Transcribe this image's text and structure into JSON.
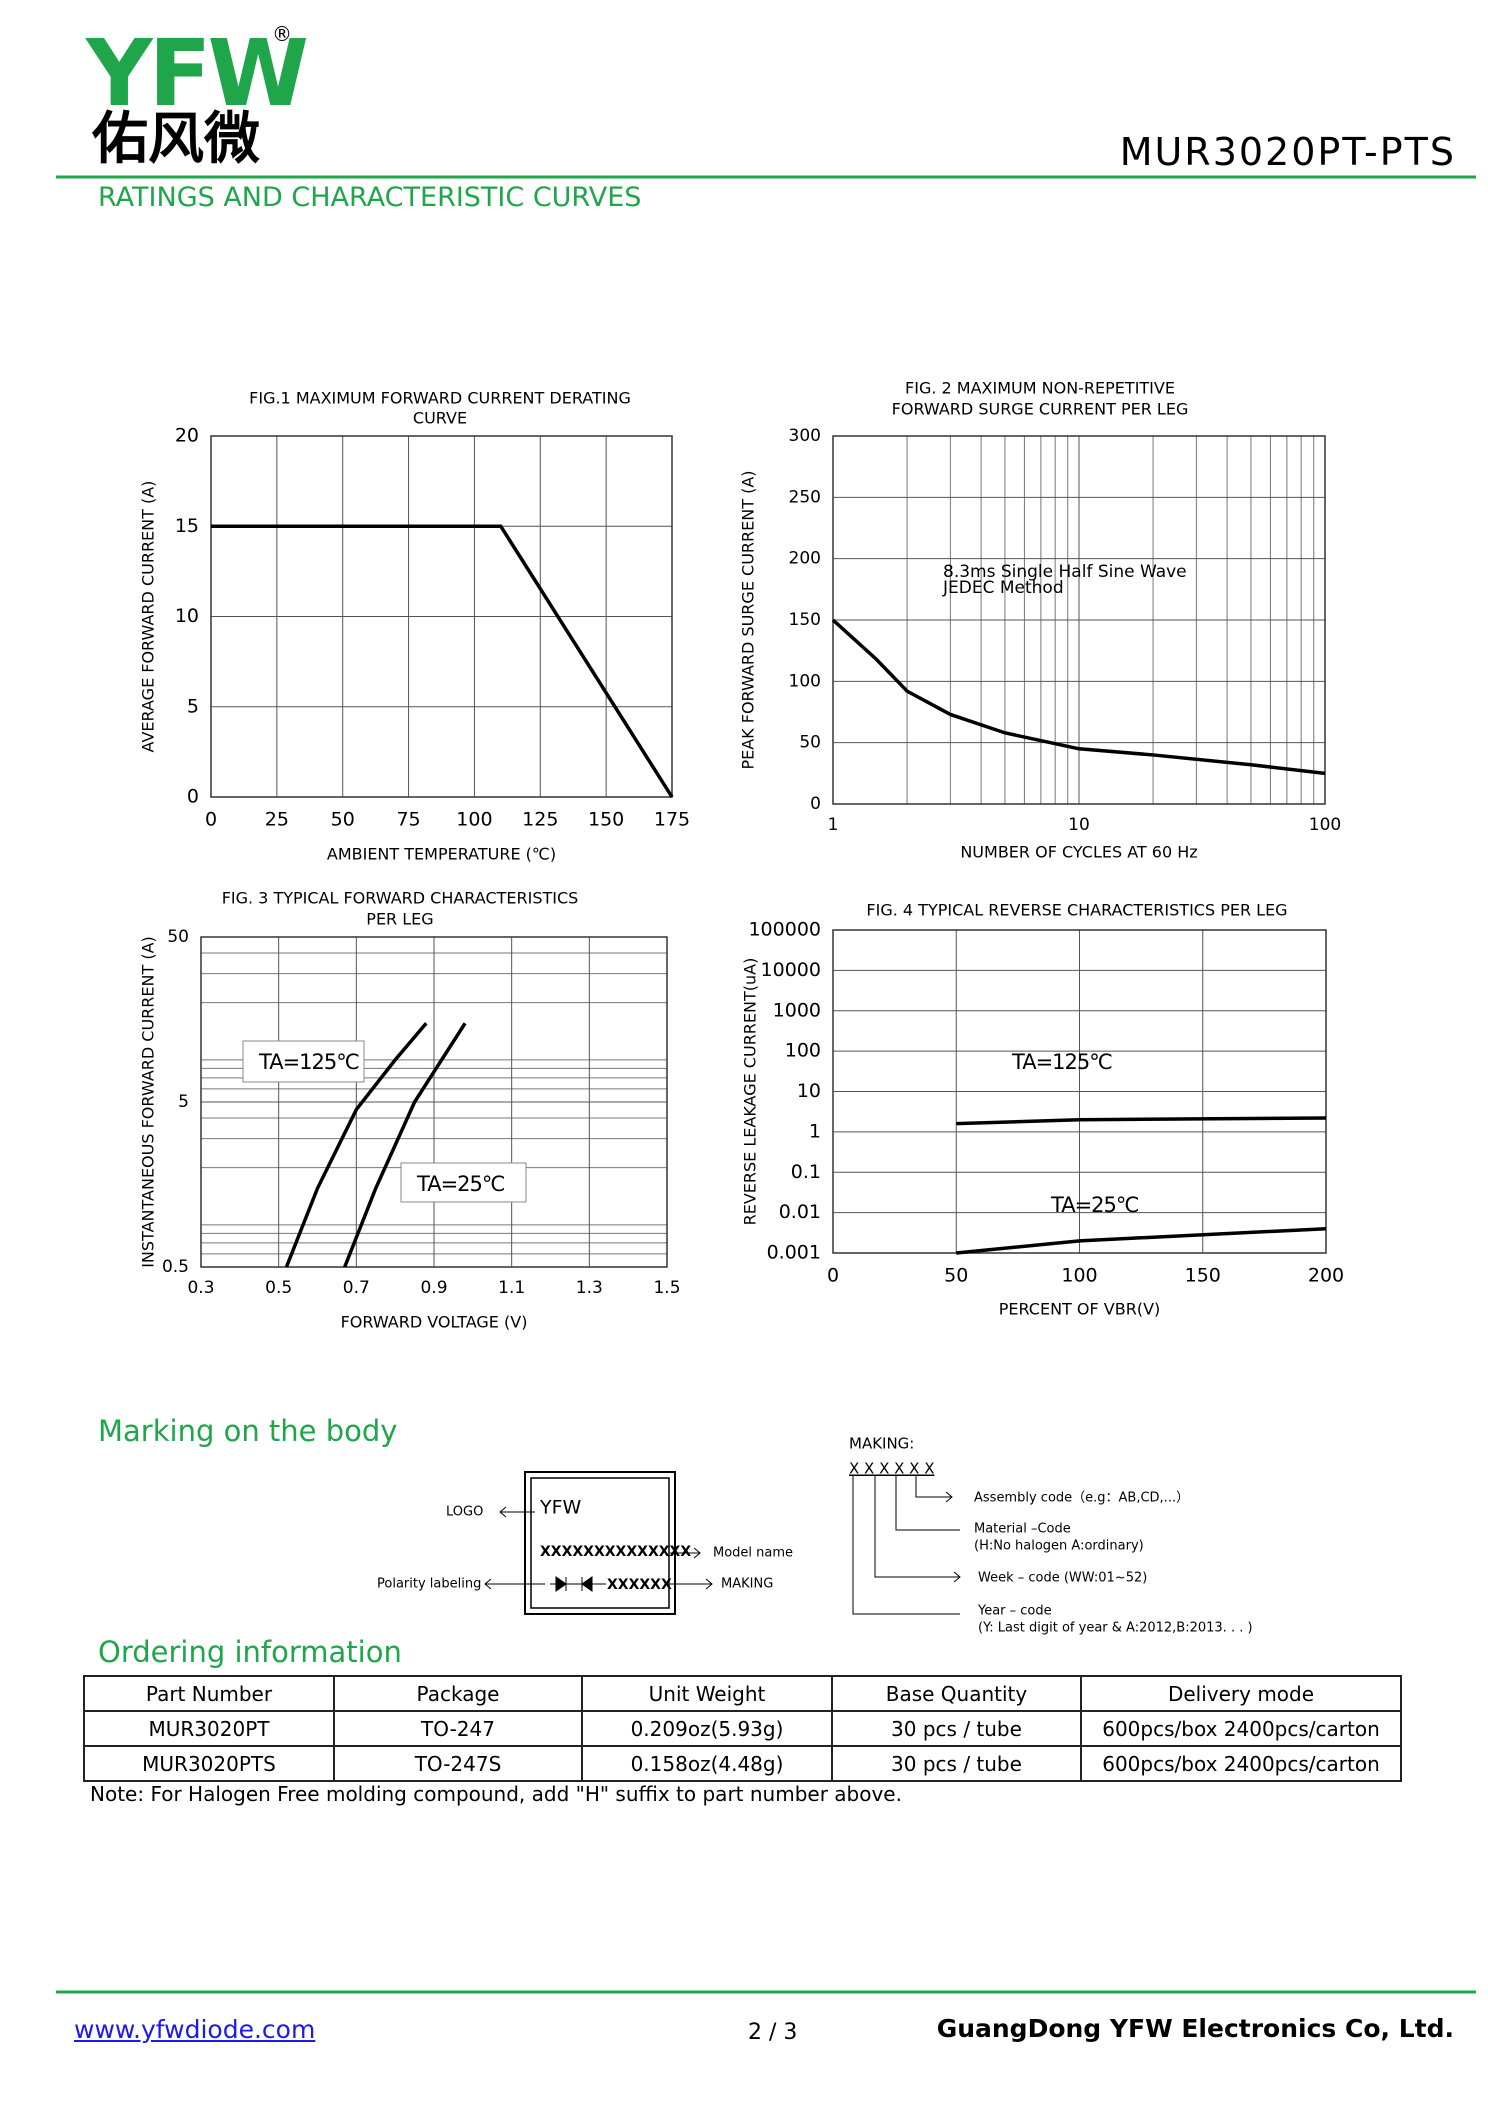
{
  "header": {
    "logo": "YFW",
    "registered": "®",
    "logo_cn": "佑风微",
    "part": "MUR3020PT-PTS",
    "section": "RATINGS AND CHARACTERISTIC CURVES"
  },
  "chart_data": [
    {
      "type": "line",
      "title": [
        "FIG.1 MAXIMUM FORWARD CURRENT DERATING",
        "CURVE"
      ],
      "x_label": "AMBIENT TEMPERATURE (℃)",
      "y_label": "AVERAGE FORWARD CURRENT (A)",
      "x": [
        0,
        110,
        175
      ],
      "values": [
        15,
        15,
        0
      ],
      "color": "#000000",
      "xlim": [
        0,
        175
      ],
      "xticks": [
        0,
        25,
        50,
        75,
        100,
        125,
        150,
        175
      ],
      "ylim": [
        0,
        20
      ],
      "yticks": [
        0,
        5,
        10,
        15,
        20
      ],
      "grid": true
    },
    {
      "type": "line",
      "title": [
        "FIG. 2 MAXIMUM NON-REPETITIVE",
        "FORWARD SURGE CURRENT PER LEG"
      ],
      "x_label": "NUMBER OF CYCLES AT 60 Hz",
      "y_label": "PEAK FORWARD SURGE CURRENT (A)",
      "annotations": [
        "8.3ms Single Half Sine Wave",
        "JEDEC Method"
      ],
      "x": [
        1,
        1.5,
        2,
        3,
        5,
        10,
        20,
        50,
        100
      ],
      "values": [
        150,
        118,
        92,
        73,
        58,
        45,
        40,
        32,
        25
      ],
      "color": "#000000",
      "xlim": [
        1,
        100
      ],
      "xticks": [
        1,
        10,
        100
      ],
      "x_log": true,
      "minor_grid": true,
      "ylim": [
        0,
        300
      ],
      "yticks": [
        0,
        50,
        100,
        150,
        200,
        250,
        300
      ],
      "grid": true
    },
    {
      "type": "line",
      "title": [
        "FIG. 3 TYPICAL FORWARD CHARACTERISTICS",
        "PER LEG"
      ],
      "x_label": "FORWARD VOLTAGE (V)",
      "y_label": "INSTANTANEOUS FORWARD CURRENT (A)",
      "series": [
        {
          "name": "TA=125℃",
          "color": "#000000",
          "x": [
            0.52,
            0.6,
            0.7,
            0.8,
            0.88
          ],
          "values": [
            0.5,
            1.5,
            4.5,
            9,
            15
          ]
        },
        {
          "name": "TA=25℃",
          "color": "#000000",
          "x": [
            0.67,
            0.75,
            0.85,
            0.98
          ],
          "values": [
            0.5,
            1.5,
            5,
            15
          ]
        }
      ],
      "label_boxes": true,
      "xlim": [
        0.3,
        1.5
      ],
      "xticks": [
        0.3,
        0.5,
        0.7,
        0.9,
        1.1,
        1.3,
        1.5
      ],
      "ylim": [
        0.5,
        50
      ],
      "yticks": [
        0.5,
        5,
        50
      ],
      "y_log": true,
      "minor_grid": true,
      "grid": true
    },
    {
      "type": "line",
      "title": [
        "FIG. 4 TYPICAL REVERSE CHARACTERISTICS PER LEG"
      ],
      "x_label": "PERCENT OF VBR(V)",
      "y_label": "REVERSE LEAKAGE CURRENT(uA)",
      "series": [
        {
          "name": "TA=125℃",
          "color": "#000000",
          "x": [
            50,
            100,
            200
          ],
          "values": [
            1.6,
            2,
            2.2
          ]
        },
        {
          "name": "TA=25℃",
          "color": "#000000",
          "x": [
            50,
            100,
            200
          ],
          "values": [
            0.001,
            0.002,
            0.004
          ]
        }
      ],
      "xlim": [
        0,
        200
      ],
      "xticks": [
        0,
        50,
        100,
        150,
        200
      ],
      "ylim": [
        0.001,
        100000
      ],
      "yticks": [
        0.001,
        0.01,
        0.1,
        1,
        10,
        100,
        1000,
        10000,
        100000
      ],
      "y_log": true,
      "grid": true
    }
  ],
  "marking": {
    "title": "Marking on the body",
    "logo": "YFW",
    "model": "XXXXXXXXXXXXXX",
    "making": "XXXXXX",
    "labels": {
      "logo": "LOGO",
      "model": "Model name",
      "polarity": "Polarity labeling",
      "making": "MAKING"
    },
    "code": {
      "title": "MAKING:",
      "pattern": "X X X X X X",
      "assembly": "Assembly code（e.g：AB,CD,...）",
      "material": "Material –Code",
      "material_note": "(H:No halogen   A:ordinary)",
      "week": "Week – code (WW:01~52)",
      "year": "Year – code",
      "year_note": "(Y: Last digit of year & A:2012,B:2013. . . )"
    }
  },
  "ordering": {
    "title": "Ordering information",
    "table": {
      "header": [
        "Part Number",
        "Package",
        "Unit Weight",
        "Base Quantity",
        "Delivery mode"
      ],
      "rows": [
        [
          "MUR3020PT",
          "TO-247",
          "0.209oz(5.93g)",
          "30 pcs / tube",
          "600pcs/box 2400pcs/carton"
        ],
        [
          "MUR3020PTS",
          "TO-247S",
          "0.158oz(4.48g)",
          "30 pcs / tube",
          "600pcs/box 2400pcs/carton"
        ]
      ]
    },
    "note": "Note: For Halogen Free molding compound, add \"H\" suffix to part number above."
  },
  "footer": {
    "url": "www.yfwdiode.com",
    "page": "2 / 3",
    "company": "GuangDong YFW Electronics Co, Ltd."
  }
}
